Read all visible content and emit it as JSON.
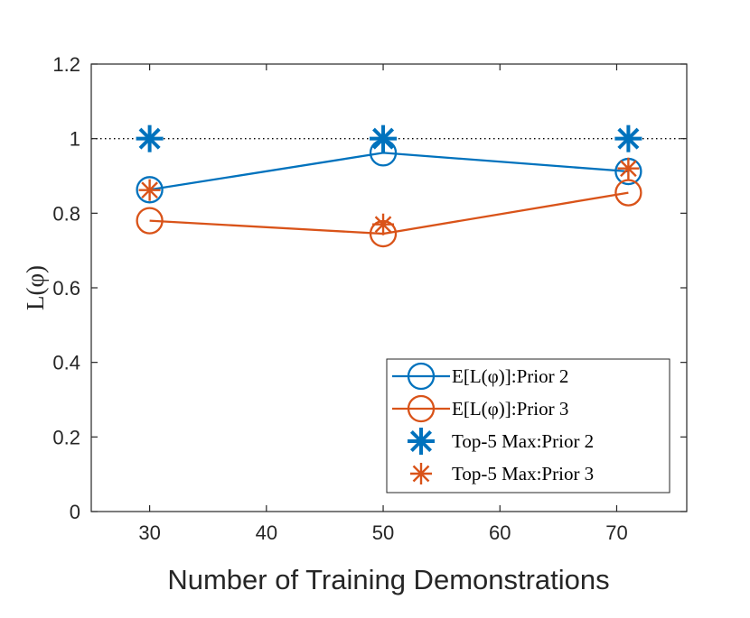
{
  "chart_data": {
    "type": "line",
    "title": "",
    "xlabel": "Number of Training Demonstrations",
    "ylabel": "L(φ)",
    "xlim": [
      25,
      76
    ],
    "ylim": [
      0,
      1.2
    ],
    "xticks": [
      30,
      40,
      50,
      60,
      70
    ],
    "yticks": [
      0,
      0.2,
      0.4,
      0.6,
      0.8,
      1,
      1.2
    ],
    "ytick_labels": [
      "0",
      "0.2",
      "0.4",
      "0.6",
      "0.8",
      "1",
      "1.2"
    ],
    "reference_line": {
      "y": 1,
      "style": "dotted"
    },
    "grid": false,
    "legend_position": "bottom-right",
    "series": [
      {
        "name": "E[L(φ)]:Prior 2",
        "color": "#0072BD",
        "marker": "circle",
        "line": true,
        "x": [
          30,
          50,
          71
        ],
        "values": [
          0.863,
          0.962,
          0.912
        ]
      },
      {
        "name": "E[L(φ)]:Prior 3",
        "color": "#D95319",
        "marker": "circle",
        "line": true,
        "x": [
          30,
          50,
          71
        ],
        "values": [
          0.78,
          0.745,
          0.855
        ]
      },
      {
        "name": "Top-5 Max:Prior 2",
        "color": "#0072BD",
        "marker": "asterisk",
        "line": false,
        "x": [
          30,
          50,
          71
        ],
        "values": [
          1.0,
          1.0,
          1.0
        ]
      },
      {
        "name": "Top-5 Max:Prior 3",
        "color": "#D95319",
        "marker": "asterisk",
        "line": false,
        "x": [
          30,
          50,
          71
        ],
        "values": [
          0.862,
          0.77,
          0.92
        ]
      }
    ]
  }
}
